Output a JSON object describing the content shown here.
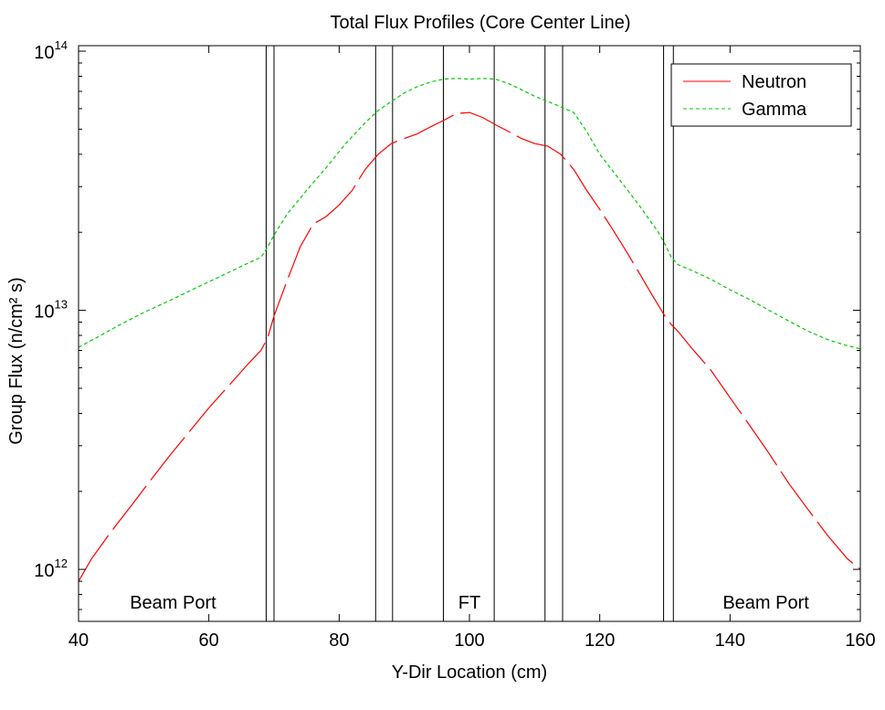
{
  "chart_data": {
    "type": "line",
    "title": "Total Flux Profiles  (Core Center Line)",
    "xlabel": "Y-Dir Location (cm)",
    "ylabel": "Group Flux (n/cm² s)",
    "yscale": "log",
    "xlim": [
      40,
      160
    ],
    "ylim": [
      630000000000.0,
      105000000000000.0
    ],
    "x_ticks": [
      "40",
      "60",
      "80",
      "100",
      "120",
      "140",
      "160"
    ],
    "y_ticks": [
      {
        "base": "10",
        "exp": "12",
        "value": 1000000000000.0
      },
      {
        "base": "10",
        "exp": "13",
        "value": 10000000000000.0
      },
      {
        "base": "10",
        "exp": "14",
        "value": 100000000000000.0
      }
    ],
    "grid": false,
    "legend_position": "top-right",
    "region_lines_x": [
      68.8,
      70.0,
      85.6,
      88.2,
      96.0,
      103.8,
      111.6,
      114.3,
      129.8,
      131.3
    ],
    "region_labels": [
      {
        "text": "Beam Port",
        "x": 54.5
      },
      {
        "text": "FT",
        "x": 100
      },
      {
        "text": "Beam Port",
        "x": 145.5
      }
    ],
    "series": [
      {
        "name": "Neutron",
        "color": "#ff0000",
        "dash": "long-dash",
        "x": [
          40,
          42,
          45,
          48,
          51,
          54,
          57,
          60,
          63,
          66,
          68,
          69,
          70,
          72,
          74,
          76,
          78,
          80,
          82,
          84,
          86,
          88,
          90,
          92,
          94,
          96,
          98,
          100,
          102,
          104,
          106,
          108,
          110,
          112,
          114,
          116,
          118,
          120,
          122,
          124,
          126,
          128,
          130,
          131,
          132,
          134,
          137,
          140,
          143,
          146,
          149,
          152,
          155,
          158,
          160
        ],
        "values": [
          900000000000.0,
          1100000000000.0,
          1400000000000.0,
          1750000000000.0,
          2200000000000.0,
          2750000000000.0,
          3400000000000.0,
          4200000000000.0,
          5100000000000.0,
          6200000000000.0,
          7000000000000.0,
          7800000000000.0,
          9500000000000.0,
          13000000000000.0,
          17500000000000.0,
          21500000000000.0,
          23000000000000.0,
          25500000000000.0,
          29000000000000.0,
          35000000000000.0,
          40000000000000.0,
          44000000000000.0,
          46000000000000.0,
          48000000000000.0,
          51000000000000.0,
          54000000000000.0,
          57500000000000.0,
          58000000000000.0,
          55500000000000.0,
          52000000000000.0,
          49000000000000.0,
          46000000000000.0,
          44000000000000.0,
          43000000000000.0,
          40000000000000.0,
          35000000000000.0,
          29000000000000.0,
          24500000000000.0,
          20500000000000.0,
          17000000000000.0,
          14000000000000.0,
          11500000000000.0,
          9500000000000.0,
          8800000000000.0,
          8300000000000.0,
          7200000000000.0,
          5900000000000.0,
          4600000000000.0,
          3600000000000.0,
          2800000000000.0,
          2150000000000.0,
          1700000000000.0,
          1350000000000.0,
          1100000000000.0,
          1000000000000.0
        ]
      },
      {
        "name": "Gamma",
        "color": "#00cc00",
        "dash": "short-dash",
        "x": [
          40,
          43,
          46,
          50,
          54,
          58,
          62,
          66,
          68,
          69,
          70,
          72,
          75,
          78,
          81,
          84,
          86,
          88,
          90,
          92,
          94,
          96,
          98,
          100,
          102,
          104,
          106,
          108,
          110,
          112,
          114,
          116,
          118,
          120,
          123,
          126,
          129,
          130,
          131,
          132,
          134,
          137,
          140,
          143,
          146,
          149,
          152,
          155,
          158,
          160
        ],
        "values": [
          7200000000000.0,
          7900000000000.0,
          8700000000000.0,
          9800000000000.0,
          10900000000000.0,
          12200000000000.0,
          13600000000000.0,
          15200000000000.0,
          16000000000000.0,
          17500000000000.0,
          19500000000000.0,
          23500000000000.0,
          29000000000000.0,
          35500000000000.0,
          44000000000000.0,
          53000000000000.0,
          59000000000000.0,
          64000000000000.0,
          69000000000000.0,
          73000000000000.0,
          76000000000000.0,
          78000000000000.0,
          78500000000000.0,
          78000000000000.0,
          78500000000000.0,
          78000000000000.0,
          75000000000000.0,
          71000000000000.0,
          67000000000000.0,
          64000000000000.0,
          61000000000000.0,
          58000000000000.0,
          49000000000000.0,
          40000000000000.0,
          32000000000000.0,
          25500000000000.0,
          20000000000000.0,
          18000000000000.0,
          16000000000000.0,
          15000000000000.0,
          14300000000000.0,
          13200000000000.0,
          12000000000000.0,
          11000000000000.0,
          10000000000000.0,
          9100000000000.0,
          8300000000000.0,
          7700000000000.0,
          7300000000000.0,
          7100000000000.0
        ]
      }
    ]
  }
}
